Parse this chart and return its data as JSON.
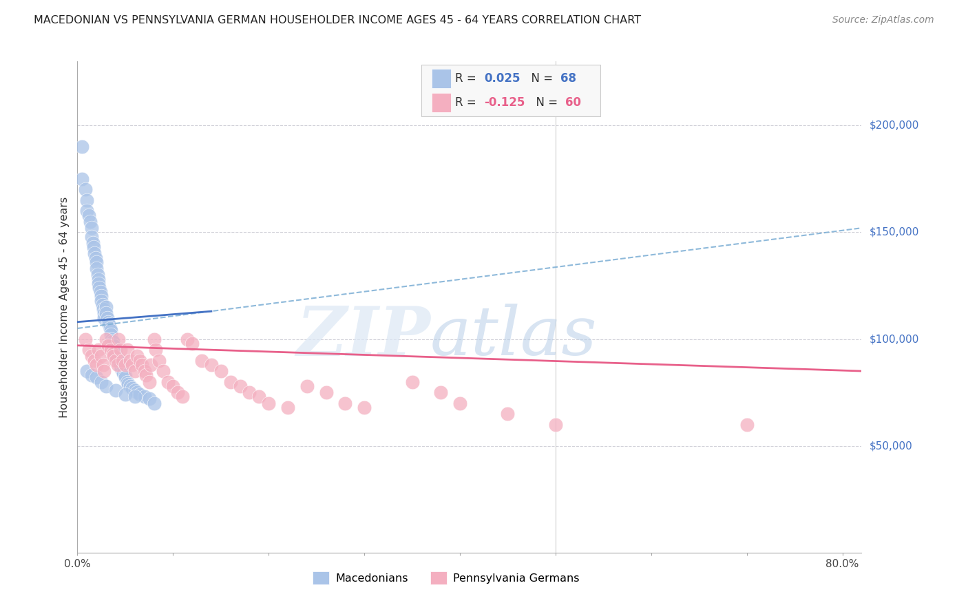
{
  "title": "MACEDONIAN VS PENNSYLVANIA GERMAN HOUSEHOLDER INCOME AGES 45 - 64 YEARS CORRELATION CHART",
  "source": "Source: ZipAtlas.com",
  "ylabel": "Householder Income Ages 45 - 64 years",
  "ylim": [
    0,
    230000
  ],
  "xlim": [
    0.0,
    0.82
  ],
  "yticks": [
    50000,
    100000,
    150000,
    200000
  ],
  "ytick_labels": [
    "$50,000",
    "$100,000",
    "$150,000",
    "$200,000"
  ],
  "blue_color": "#aac4e8",
  "blue_dark": "#4472c4",
  "pink_color": "#f4afc0",
  "pink_dark": "#e8608a",
  "watermark_zip": "ZIP",
  "watermark_atlas": "atlas",
  "blue_scatter_x": [
    0.005,
    0.005,
    0.008,
    0.01,
    0.01,
    0.012,
    0.013,
    0.015,
    0.015,
    0.016,
    0.017,
    0.018,
    0.019,
    0.02,
    0.02,
    0.021,
    0.022,
    0.022,
    0.023,
    0.024,
    0.025,
    0.025,
    0.026,
    0.027,
    0.028,
    0.028,
    0.03,
    0.03,
    0.031,
    0.032,
    0.033,
    0.034,
    0.035,
    0.035,
    0.036,
    0.037,
    0.038,
    0.04,
    0.04,
    0.041,
    0.042,
    0.043,
    0.044,
    0.045,
    0.045,
    0.046,
    0.047,
    0.048,
    0.05,
    0.05,
    0.052,
    0.053,
    0.055,
    0.057,
    0.06,
    0.062,
    0.065,
    0.07,
    0.075,
    0.08,
    0.01,
    0.015,
    0.02,
    0.025,
    0.03,
    0.04,
    0.05,
    0.06
  ],
  "blue_scatter_y": [
    190000,
    175000,
    170000,
    165000,
    160000,
    158000,
    155000,
    152000,
    148000,
    145000,
    143000,
    140000,
    138000,
    136000,
    133000,
    130000,
    128000,
    126000,
    124000,
    122000,
    120000,
    118000,
    116000,
    114000,
    112000,
    110000,
    115000,
    112000,
    110000,
    108000,
    107000,
    105000,
    104000,
    102000,
    100000,
    99000,
    97000,
    95000,
    93000,
    92000,
    91000,
    90000,
    89000,
    88000,
    87000,
    86000,
    85000,
    84000,
    83000,
    82000,
    80000,
    79000,
    78000,
    77000,
    76000,
    75000,
    74000,
    73000,
    72000,
    70000,
    85000,
    83000,
    82000,
    80000,
    78000,
    76000,
    74000,
    73000
  ],
  "pink_scatter_x": [
    0.008,
    0.012,
    0.015,
    0.018,
    0.02,
    0.022,
    0.025,
    0.027,
    0.028,
    0.03,
    0.032,
    0.035,
    0.037,
    0.038,
    0.04,
    0.042,
    0.043,
    0.045,
    0.047,
    0.05,
    0.052,
    0.055,
    0.057,
    0.06,
    0.062,
    0.065,
    0.067,
    0.07,
    0.072,
    0.075,
    0.077,
    0.08,
    0.082,
    0.085,
    0.09,
    0.095,
    0.1,
    0.105,
    0.11,
    0.115,
    0.12,
    0.13,
    0.14,
    0.15,
    0.16,
    0.17,
    0.18,
    0.19,
    0.2,
    0.22,
    0.24,
    0.26,
    0.28,
    0.3,
    0.35,
    0.38,
    0.4,
    0.45,
    0.5,
    0.7
  ],
  "pink_scatter_y": [
    100000,
    95000,
    92000,
    90000,
    88000,
    95000,
    92000,
    88000,
    85000,
    100000,
    97000,
    95000,
    93000,
    92000,
    90000,
    88000,
    100000,
    95000,
    90000,
    88000,
    95000,
    90000,
    88000,
    85000,
    92000,
    90000,
    88000,
    85000,
    83000,
    80000,
    88000,
    100000,
    95000,
    90000,
    85000,
    80000,
    78000,
    75000,
    73000,
    100000,
    98000,
    90000,
    88000,
    85000,
    80000,
    78000,
    75000,
    73000,
    70000,
    68000,
    78000,
    75000,
    70000,
    68000,
    80000,
    75000,
    70000,
    65000,
    60000,
    60000
  ],
  "blue_line_x": [
    0.0,
    0.14
  ],
  "blue_line_y": [
    108000,
    113000
  ],
  "dashed_line_x": [
    0.0,
    0.82
  ],
  "dashed_line_y": [
    105000,
    152000
  ],
  "pink_line_x": [
    0.0,
    0.82
  ],
  "pink_line_y": [
    97000,
    85000
  ]
}
